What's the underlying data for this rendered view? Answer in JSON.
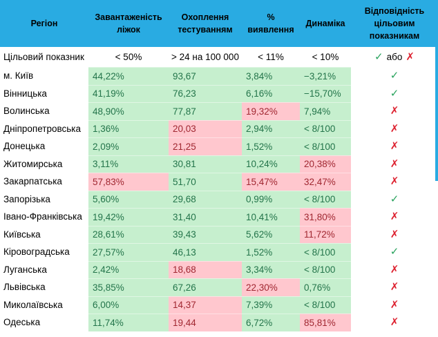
{
  "colors": {
    "header_bg": "#29abe2",
    "good_bg": "#c6efce",
    "good_text": "#23744a",
    "bad_bg": "#ffc7ce",
    "bad_text": "#a02731",
    "check_green": "#27a25c",
    "cross_red": "#dd2230",
    "header_text": "#000000"
  },
  "table": {
    "headers": [
      "Регіон",
      "Завантаженість ліжок",
      "Охоплення тестуванням",
      "% виявлення",
      "Динаміка",
      "Відповідність цільовим показникам"
    ],
    "header_keys": [
      "region",
      "bed-occupancy",
      "testing-coverage",
      "detection-rate",
      "dynamics",
      "target-compliance"
    ],
    "target_row": {
      "label": "Цільовий показник",
      "values": [
        "< 50%",
        "> 24 на 100 000",
        "< 11%",
        "< 10%"
      ],
      "status": {
        "check": "✓",
        "or_word": "або",
        "cross": "✗"
      }
    },
    "status_glyphs": {
      "check": "✓",
      "cross": "✗"
    },
    "rows": [
      {
        "region": "м. Київ",
        "cells": [
          {
            "value": "44,22%",
            "state": "good"
          },
          {
            "value": "93,67",
            "state": "good"
          },
          {
            "value": "3,84%",
            "state": "good"
          },
          {
            "value": "−3,21%",
            "state": "good"
          }
        ],
        "status": "check"
      },
      {
        "region": "Вінницька",
        "cells": [
          {
            "value": "41,19%",
            "state": "good"
          },
          {
            "value": "76,23",
            "state": "good"
          },
          {
            "value": "6,16%",
            "state": "good"
          },
          {
            "value": "−15,70%",
            "state": "good"
          }
        ],
        "status": "check"
      },
      {
        "region": "Волинська",
        "cells": [
          {
            "value": "48,90%",
            "state": "good"
          },
          {
            "value": "77,87",
            "state": "good"
          },
          {
            "value": "19,32%",
            "state": "bad"
          },
          {
            "value": "7,94%",
            "state": "good"
          }
        ],
        "status": "cross"
      },
      {
        "region": "Дніпропетровська",
        "cells": [
          {
            "value": "1,36%",
            "state": "good"
          },
          {
            "value": "20,03",
            "state": "bad"
          },
          {
            "value": "2,94%",
            "state": "good"
          },
          {
            "value": "< 8/100",
            "state": "good"
          }
        ],
        "status": "cross"
      },
      {
        "region": "Донецька",
        "cells": [
          {
            "value": "2,09%",
            "state": "good"
          },
          {
            "value": "21,25",
            "state": "bad"
          },
          {
            "value": "1,52%",
            "state": "good"
          },
          {
            "value": "< 8/100",
            "state": "good"
          }
        ],
        "status": "cross"
      },
      {
        "region": "Житомирська",
        "cells": [
          {
            "value": "3,11%",
            "state": "good"
          },
          {
            "value": "30,81",
            "state": "good"
          },
          {
            "value": "10,24%",
            "state": "good"
          },
          {
            "value": "20,38%",
            "state": "bad"
          }
        ],
        "status": "cross"
      },
      {
        "region": "Закарпатська",
        "cells": [
          {
            "value": "57,83%",
            "state": "bad"
          },
          {
            "value": "51,70",
            "state": "good"
          },
          {
            "value": "15,47%",
            "state": "bad"
          },
          {
            "value": "32,47%",
            "state": "bad"
          }
        ],
        "status": "cross"
      },
      {
        "region": "Запорізька",
        "cells": [
          {
            "value": "5,60%",
            "state": "good"
          },
          {
            "value": "29,68",
            "state": "good"
          },
          {
            "value": "0,99%",
            "state": "good"
          },
          {
            "value": "< 8/100",
            "state": "good"
          }
        ],
        "status": "check"
      },
      {
        "region": "Івано-Франківська",
        "cells": [
          {
            "value": "19,42%",
            "state": "good"
          },
          {
            "value": "31,40",
            "state": "good"
          },
          {
            "value": "10,41%",
            "state": "good"
          },
          {
            "value": "31,80%",
            "state": "bad"
          }
        ],
        "status": "cross"
      },
      {
        "region": "Київська",
        "cells": [
          {
            "value": "28,61%",
            "state": "good"
          },
          {
            "value": "39,43",
            "state": "good"
          },
          {
            "value": "5,62%",
            "state": "good"
          },
          {
            "value": "11,72%",
            "state": "bad"
          }
        ],
        "status": "cross"
      },
      {
        "region": "Кіровоградська",
        "cells": [
          {
            "value": "27,57%",
            "state": "good"
          },
          {
            "value": "46,13",
            "state": "good"
          },
          {
            "value": "1,52%",
            "state": "good"
          },
          {
            "value": "< 8/100",
            "state": "good"
          }
        ],
        "status": "check"
      },
      {
        "region": "Луганська",
        "cells": [
          {
            "value": "2,42%",
            "state": "good"
          },
          {
            "value": "18,68",
            "state": "bad"
          },
          {
            "value": "3,34%",
            "state": "good"
          },
          {
            "value": "< 8/100",
            "state": "good"
          }
        ],
        "status": "cross"
      },
      {
        "region": "Львівська",
        "cells": [
          {
            "value": "35,85%",
            "state": "good"
          },
          {
            "value": "67,26",
            "state": "good"
          },
          {
            "value": "22,30%",
            "state": "bad"
          },
          {
            "value": "0,76%",
            "state": "good"
          }
        ],
        "status": "cross"
      },
      {
        "region": "Миколаївська",
        "cells": [
          {
            "value": "6,00%",
            "state": "good"
          },
          {
            "value": "14,37",
            "state": "bad"
          },
          {
            "value": "7,39%",
            "state": "good"
          },
          {
            "value": "< 8/100",
            "state": "good"
          }
        ],
        "status": "cross"
      },
      {
        "region": "Одеська",
        "cells": [
          {
            "value": "11,74%",
            "state": "good"
          },
          {
            "value": "19,44",
            "state": "bad"
          },
          {
            "value": "6,72%",
            "state": "good"
          },
          {
            "value": "85,81%",
            "state": "bad"
          }
        ],
        "status": "cross"
      }
    ]
  }
}
